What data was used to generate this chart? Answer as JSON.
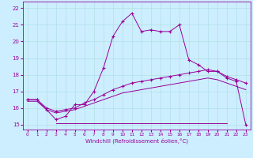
{
  "title": "",
  "xlabel": "Windchill (Refroidissement éolien,°C)",
  "bg_color": "#cceeff",
  "line_color": "#990099",
  "grid_color": "#aadddd",
  "x_ticks": [
    0,
    1,
    2,
    3,
    4,
    5,
    6,
    7,
    8,
    9,
    10,
    11,
    12,
    13,
    14,
    15,
    16,
    17,
    18,
    19,
    20,
    21,
    22,
    23
  ],
  "y_ticks": [
    15,
    16,
    17,
    18,
    19,
    20,
    21,
    22
  ],
  "ylim": [
    14.7,
    22.4
  ],
  "xlim": [
    -0.5,
    23.5
  ],
  "curve1_x": [
    0,
    1,
    2,
    3,
    4,
    5,
    6,
    7,
    8,
    9,
    10,
    11,
    12,
    13,
    14,
    15,
    16,
    17,
    18,
    19,
    20,
    21,
    22,
    23
  ],
  "curve1_y": [
    16.5,
    16.5,
    15.9,
    15.3,
    15.5,
    16.2,
    16.2,
    17.0,
    18.4,
    20.3,
    21.2,
    21.7,
    20.6,
    20.7,
    20.6,
    20.6,
    21.0,
    18.9,
    18.6,
    18.2,
    18.2,
    17.8,
    17.6,
    15.0
  ],
  "curve2_x": [
    0,
    1,
    2,
    3,
    4,
    5,
    6,
    7,
    8,
    9,
    10,
    11,
    12,
    13,
    14,
    15,
    16,
    17,
    18,
    19,
    20,
    21,
    22,
    23
  ],
  "curve2_y": [
    16.5,
    16.5,
    16.0,
    15.8,
    15.9,
    16.0,
    16.3,
    16.5,
    16.8,
    17.1,
    17.3,
    17.5,
    17.6,
    17.7,
    17.8,
    17.9,
    18.0,
    18.1,
    18.2,
    18.3,
    18.2,
    17.9,
    17.7,
    17.5
  ],
  "curve3_x": [
    0,
    1,
    2,
    3,
    4,
    5,
    6,
    7,
    8,
    9,
    10,
    11,
    12,
    13,
    14,
    15,
    16,
    17,
    18,
    19,
    20,
    21,
    22,
    23
  ],
  "curve3_y": [
    16.4,
    16.4,
    15.9,
    15.7,
    15.8,
    15.9,
    16.1,
    16.3,
    16.5,
    16.7,
    16.9,
    17.0,
    17.1,
    17.2,
    17.3,
    17.4,
    17.5,
    17.6,
    17.7,
    17.8,
    17.7,
    17.5,
    17.3,
    17.1
  ],
  "curve4_x": [
    3,
    4,
    5,
    6,
    7,
    8,
    9,
    10,
    11,
    12,
    13,
    14,
    15,
    16,
    17,
    18,
    19,
    20,
    21
  ],
  "curve4_y": [
    15.1,
    15.1,
    15.1,
    15.1,
    15.1,
    15.1,
    15.1,
    15.1,
    15.1,
    15.1,
    15.1,
    15.1,
    15.1,
    15.1,
    15.1,
    15.1,
    15.1,
    15.1,
    15.1
  ]
}
